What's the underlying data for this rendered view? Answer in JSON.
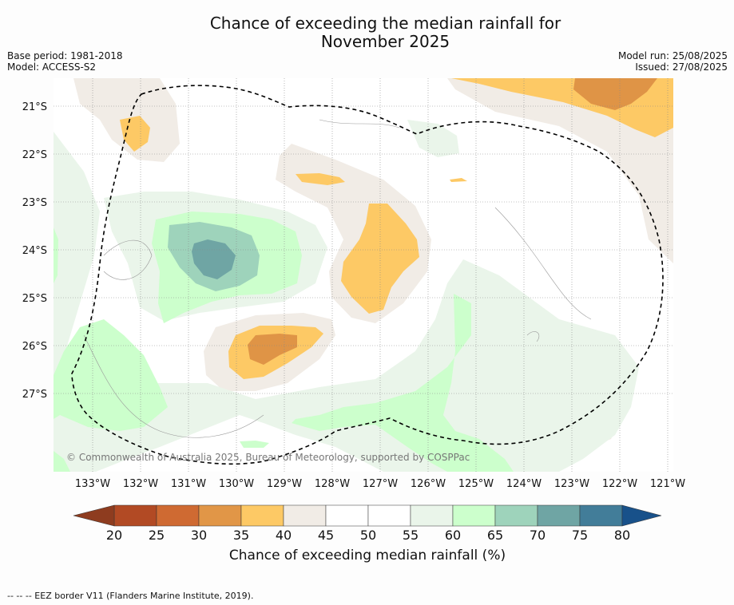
{
  "title_line1": "Chance of exceeding the median rainfall for",
  "title_line2": "November 2025",
  "meta_left": [
    "Base period: 1981-2018",
    "Model: ACCESS-S2"
  ],
  "meta_right": [
    "Model run: 25/08/2025",
    "Issued: 27/08/2025"
  ],
  "copyright": "© Commonwealth of Australia 2025, Bureau of Meteorology, supported by COSPPac",
  "lat_labels": [
    "21°S",
    "22°S",
    "23°S",
    "24°S",
    "25°S",
    "26°S",
    "27°S"
  ],
  "lon_labels": [
    "133°W",
    "132°W",
    "131°W",
    "130°W",
    "129°W",
    "128°W",
    "127°W",
    "126°W",
    "125°W",
    "124°W",
    "123°W",
    "122°W",
    "121°W"
  ],
  "colorbar": {
    "ticks": [
      "20",
      "25",
      "30",
      "35",
      "40",
      "45",
      "50",
      "55",
      "60",
      "65",
      "70",
      "75",
      "80"
    ],
    "colors": [
      "#b24a24",
      "#cf6a32",
      "#e19647",
      "#fdc965",
      "#f1ece6",
      "#ffffff",
      "#ffffff",
      "#eaf5ea",
      "#ccffcc",
      "#9ed3bb",
      "#6fa5a4",
      "#427d99"
    ],
    "under_color": "#8e3c1f",
    "over_color": "#18518a",
    "label": "Chance of exceeding median rainfall (%)"
  },
  "colors": {
    "very_low": "#df9446",
    "low": "#fdc965",
    "slightly_low": "#f1ece6",
    "slightly_high": "#eaf5ea",
    "high": "#ccffcc",
    "higher": "#9ed3bb",
    "highest": "#6fa5a4"
  },
  "footer": "--  --  -- EEZ border V11 (Flanders Marine Institute, 2019)."
}
